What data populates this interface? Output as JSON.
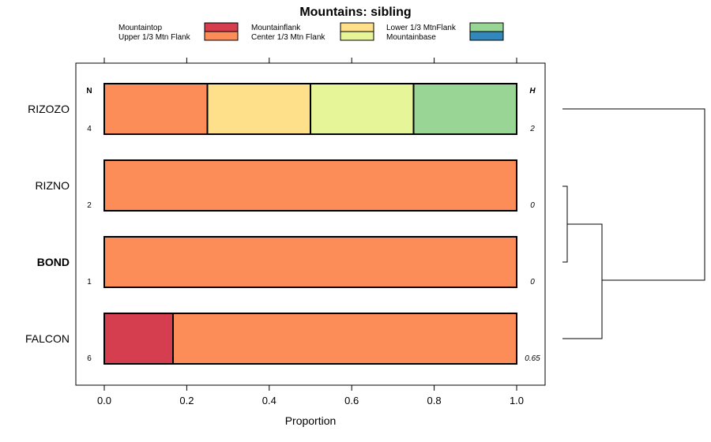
{
  "chart_data": {
    "type": "bar",
    "orientation": "horizontal",
    "stacked": true,
    "title": "Mountains: sibling",
    "xlabel": "Proportion",
    "ylabel": "",
    "xlim": [
      0,
      1
    ],
    "xticks": [
      "0.0",
      "0.2",
      "0.4",
      "0.6",
      "0.8",
      "1.0"
    ],
    "tick_values": [
      0,
      0.2,
      0.4,
      0.6,
      0.8,
      1.0
    ],
    "n_header": "N",
    "h_header": "H",
    "legend_position": "top",
    "legend": [
      {
        "name": "Mountaintop",
        "color": "#d53e4f"
      },
      {
        "name": "Upper 1/3 Mtn Flank",
        "color": "#fc8d59"
      },
      {
        "name": "Mountainflank",
        "color": "#fee08b"
      },
      {
        "name": "Center 1/3 Mtn Flank",
        "color": "#e6f598"
      },
      {
        "name": "Lower 1/3 MtnFlank",
        "color": "#99d594"
      },
      {
        "name": "Mountainbase",
        "color": "#3288bd"
      }
    ],
    "categories": [
      "RIZOZO",
      "RIZNO",
      "BOND",
      "FALCON"
    ],
    "highlighted_category": "BOND",
    "bars": [
      {
        "name": "RIZOZO",
        "n": "4",
        "h": "2",
        "segments": [
          {
            "series": "Upper 1/3 Mtn Flank",
            "value": 0.25
          },
          {
            "series": "Mountainflank",
            "value": 0.25
          },
          {
            "series": "Center 1/3 Mtn Flank",
            "value": 0.25
          },
          {
            "series": "Lower 1/3 MtnFlank",
            "value": 0.25
          }
        ]
      },
      {
        "name": "RIZNO",
        "n": "2",
        "h": "0",
        "segments": [
          {
            "series": "Upper 1/3 Mtn Flank",
            "value": 1.0
          }
        ]
      },
      {
        "name": "BOND",
        "n": "1",
        "h": "0",
        "segments": [
          {
            "series": "Upper 1/3 Mtn Flank",
            "value": 1.0
          }
        ]
      },
      {
        "name": "FALCON",
        "n": "6",
        "h": "0.65",
        "segments": [
          {
            "series": "Mountaintop",
            "value": 0.1667
          },
          {
            "series": "Upper 1/3 Mtn Flank",
            "value": 0.8333
          }
        ]
      }
    ],
    "dendrogram": {
      "merges": [
        [
          "RIZNO",
          "BOND"
        ],
        [
          "RIZNO+BOND",
          "FALCON"
        ],
        [
          "RIZNO+BOND+FALCON",
          "RIZOZO"
        ]
      ]
    }
  }
}
